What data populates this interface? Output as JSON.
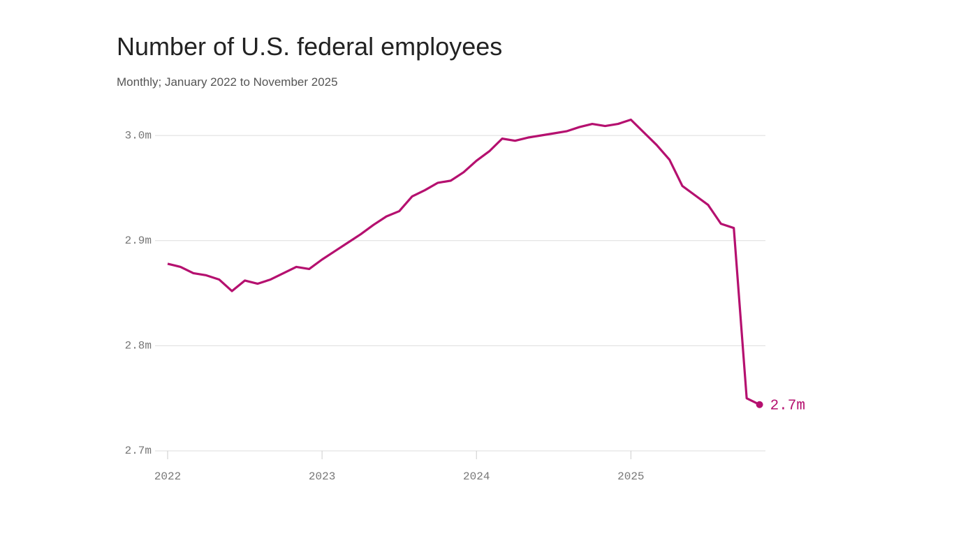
{
  "chart_data": {
    "type": "line",
    "title": "Number of U.S. federal employees",
    "subtitle": "Monthly; January 2022 to November 2025",
    "x": [
      "2022-01",
      "2022-02",
      "2022-03",
      "2022-04",
      "2022-05",
      "2022-06",
      "2022-07",
      "2022-08",
      "2022-09",
      "2022-10",
      "2022-11",
      "2022-12",
      "2023-01",
      "2023-02",
      "2023-03",
      "2023-04",
      "2023-05",
      "2023-06",
      "2023-07",
      "2023-08",
      "2023-09",
      "2023-10",
      "2023-11",
      "2023-12",
      "2024-01",
      "2024-02",
      "2024-03",
      "2024-04",
      "2024-05",
      "2024-06",
      "2024-07",
      "2024-08",
      "2024-09",
      "2024-10",
      "2024-11",
      "2024-12",
      "2025-01",
      "2025-02",
      "2025-03",
      "2025-04",
      "2025-05",
      "2025-06",
      "2025-07",
      "2025-08",
      "2025-09",
      "2025-10",
      "2025-11"
    ],
    "values": [
      2.878,
      2.875,
      2.869,
      2.867,
      2.863,
      2.852,
      2.862,
      2.859,
      2.863,
      2.869,
      2.875,
      2.873,
      2.882,
      2.89,
      2.898,
      2.906,
      2.915,
      2.923,
      2.928,
      2.942,
      2.948,
      2.955,
      2.957,
      2.965,
      2.976,
      2.985,
      2.997,
      2.995,
      2.998,
      3.0,
      3.002,
      3.004,
      3.008,
      3.011,
      3.009,
      3.011,
      3.015,
      3.003,
      2.991,
      2.977,
      2.952,
      2.943,
      2.934,
      2.916,
      2.912,
      2.75,
      2.744
    ],
    "value_labels": [
      null,
      null,
      null,
      null,
      null,
      null,
      null,
      null,
      null,
      null,
      null,
      null,
      null,
      null,
      null,
      null,
      null,
      null,
      null,
      null,
      null,
      null,
      null,
      null,
      null,
      null,
      null,
      null,
      null,
      null,
      null,
      null,
      null,
      null,
      null,
      null,
      null,
      null,
      null,
      null,
      null,
      null,
      null,
      null,
      null,
      null,
      "2.7m"
    ],
    "color": "#b5106f",
    "xlim": [
      "2021-12",
      "2025-12"
    ],
    "xticks": [
      {
        "value": "2022-01",
        "label": "2022"
      },
      {
        "value": "2023-01",
        "label": "2023"
      },
      {
        "value": "2024-01",
        "label": "2024"
      },
      {
        "value": "2025-01",
        "label": "2025"
      }
    ],
    "ylim": [
      2.7,
      3.02
    ],
    "yticks": [
      {
        "value": 2.7,
        "label": "2.7m"
      },
      {
        "value": 2.8,
        "label": "2.8m"
      },
      {
        "value": 2.9,
        "label": "2.9m"
      },
      {
        "value": 3.0,
        "label": "3.0m"
      }
    ],
    "grid": true
  }
}
